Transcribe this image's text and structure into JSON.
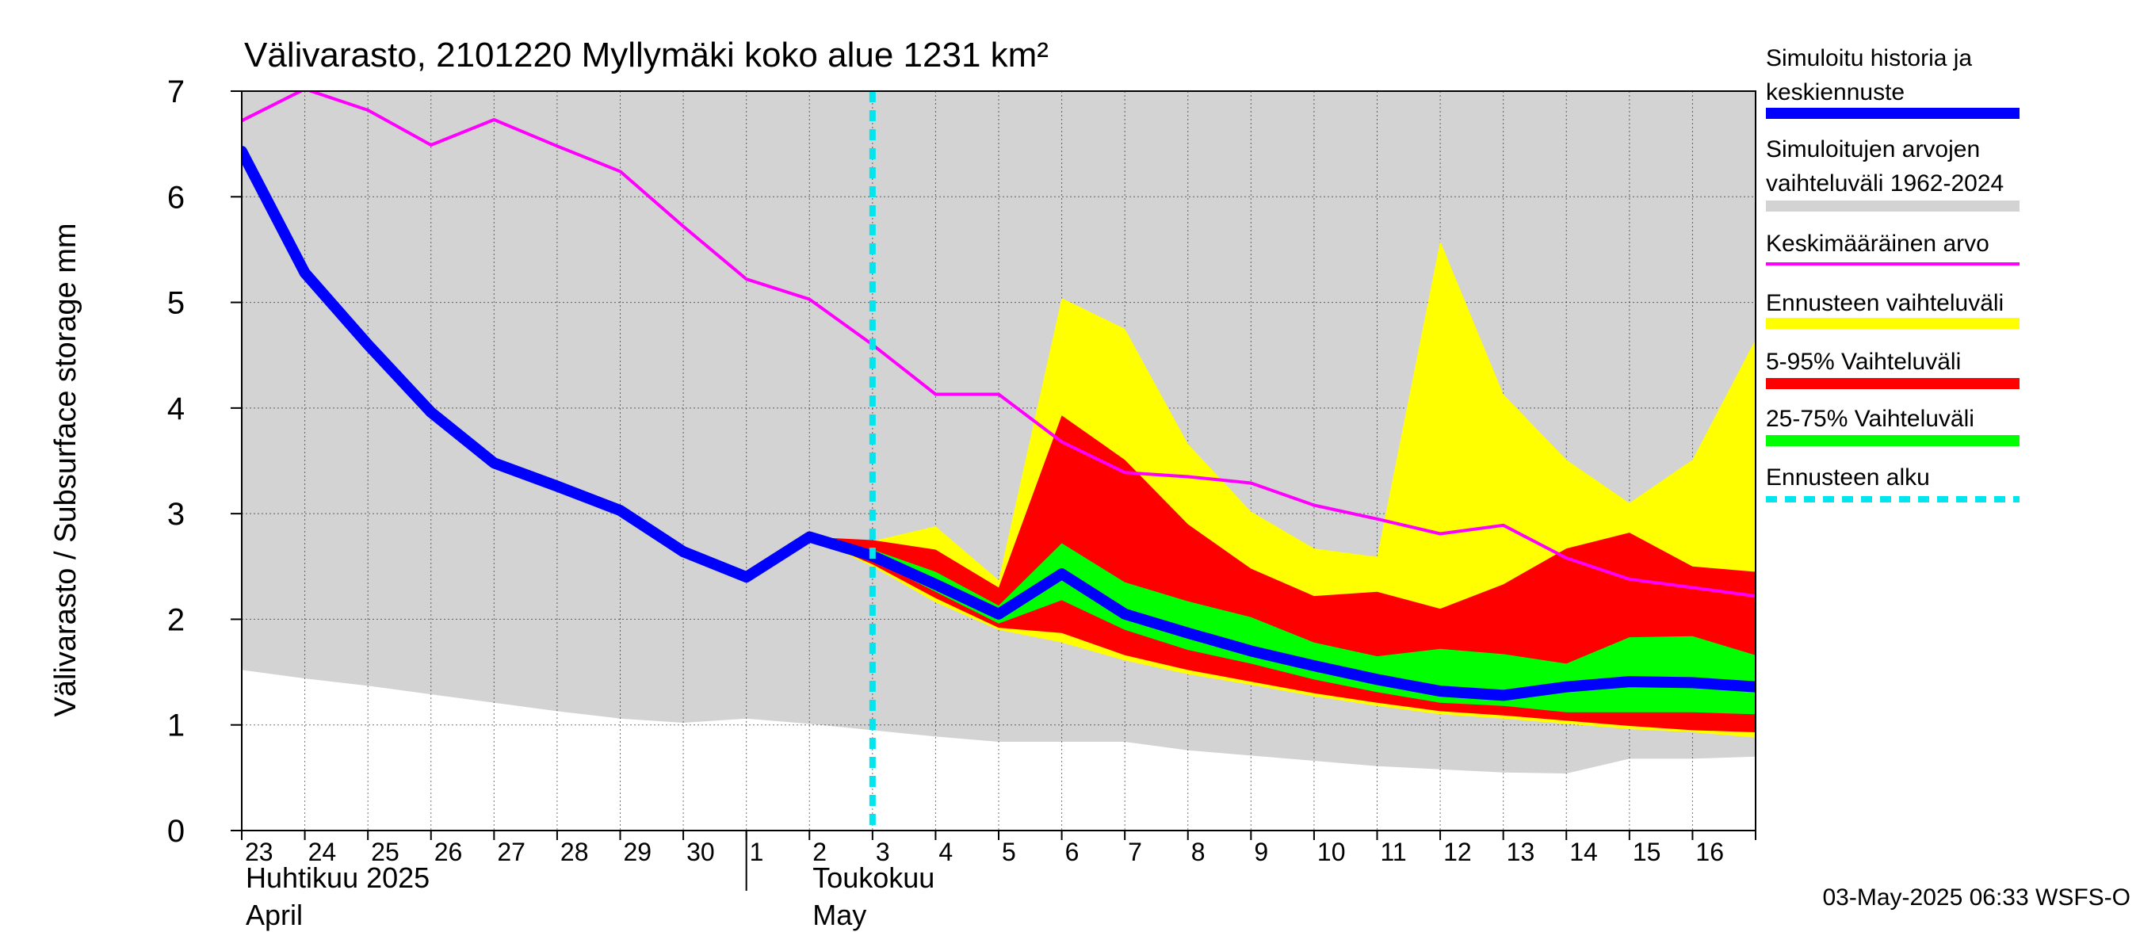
{
  "chart_data": {
    "type": "area",
    "title": "Välivarasto, 2101220 Myllymäki koko alue 1231 km²",
    "ylabel": "Välivarasto / Subsurface storage  mm",
    "ylim": [
      0,
      7
    ],
    "yticks": [
      "0",
      "1",
      "2",
      "3",
      "4",
      "5",
      "6",
      "7"
    ],
    "x_days": [
      "23",
      "24",
      "25",
      "26",
      "27",
      "28",
      "29",
      "30",
      "1",
      "2",
      "3",
      "4",
      "5",
      "6",
      "7",
      "8",
      "9",
      "10",
      "11",
      "12",
      "13",
      "14",
      "15",
      "16"
    ],
    "x_range_days": [
      0,
      24
    ],
    "months": [
      {
        "fi": "Huhtikuu  2025",
        "en": "April"
      },
      {
        "fi": "Toukokuu",
        "en": "May"
      }
    ],
    "forecast_start_day": 10,
    "history_range": {
      "x": [
        0,
        1,
        2,
        3,
        4,
        5,
        6,
        7,
        8,
        9,
        10,
        11,
        12,
        13,
        14,
        15,
        16,
        17,
        18,
        19,
        20,
        21,
        22,
        23,
        24
      ],
      "lower": [
        1.52,
        1.44,
        1.37,
        1.29,
        1.21,
        1.13,
        1.06,
        1.02,
        1.06,
        1.01,
        0.95,
        0.89,
        0.84,
        0.84,
        0.84,
        0.76,
        0.71,
        0.66,
        0.61,
        0.58,
        0.55,
        0.54,
        0.68,
        0.68,
        0.7
      ],
      "upper": [
        7,
        7,
        7,
        7,
        7,
        7,
        7,
        7,
        7,
        7,
        7,
        7,
        7,
        7,
        7,
        7,
        7,
        7,
        7,
        7,
        7,
        7,
        7,
        7,
        7
      ]
    },
    "series": [
      {
        "name": "Keskimääräinen arvo",
        "x": [
          0,
          1,
          2,
          3,
          4,
          5,
          6,
          7,
          8,
          9,
          10,
          11,
          12,
          13,
          14,
          15,
          16,
          17,
          18,
          19,
          20,
          21,
          22,
          23,
          24
        ],
        "values": [
          6.72,
          7.02,
          6.82,
          6.49,
          6.73,
          6.48,
          6.24,
          5.72,
          5.22,
          5.03,
          4.6,
          4.13,
          4.13,
          3.68,
          3.39,
          3.35,
          3.29,
          3.08,
          2.95,
          2.81,
          2.89,
          2.58,
          2.38,
          2.3,
          2.22
        ]
      },
      {
        "name": "Simuloitu historia ja keskiennuste",
        "x": [
          0,
          1,
          2,
          3,
          4,
          5,
          6,
          7,
          8,
          9,
          10,
          11,
          12,
          13,
          14,
          15,
          16,
          17,
          18,
          19,
          20,
          21,
          22,
          23,
          24
        ],
        "values": [
          6.43,
          5.28,
          4.6,
          3.96,
          3.48,
          3.26,
          3.03,
          2.64,
          2.4,
          2.78,
          2.6,
          2.33,
          2.05,
          2.43,
          2.05,
          1.87,
          1.7,
          1.56,
          1.43,
          1.32,
          1.28,
          1.36,
          1.41,
          1.4,
          1.36
        ]
      }
    ],
    "forecast_bands": {
      "x": [
        9,
        10,
        11,
        12,
        13,
        14,
        15,
        16,
        17,
        18,
        19,
        20,
        21,
        22,
        23,
        24
      ],
      "forecast_range": {
        "lower": [
          2.78,
          2.5,
          2.16,
          1.9,
          1.78,
          1.61,
          1.48,
          1.38,
          1.27,
          1.18,
          1.1,
          1.06,
          1.01,
          0.96,
          0.93,
          0.88
        ],
        "upper": [
          2.78,
          2.74,
          2.88,
          2.37,
          5.04,
          4.75,
          3.66,
          3.02,
          2.67,
          2.59,
          5.58,
          4.13,
          3.51,
          3.1,
          3.51,
          4.65
        ]
      },
      "p5_95": {
        "lower": [
          2.78,
          2.52,
          2.2,
          1.92,
          1.87,
          1.66,
          1.52,
          1.41,
          1.3,
          1.21,
          1.13,
          1.09,
          1.04,
          0.99,
          0.95,
          0.93
        ],
        "upper": [
          2.78,
          2.75,
          2.66,
          2.3,
          3.93,
          3.51,
          2.9,
          2.48,
          2.22,
          2.26,
          2.1,
          2.33,
          2.67,
          2.82,
          2.5,
          2.45
        ]
      },
      "p25_75": {
        "lower": [
          2.78,
          2.56,
          2.26,
          1.96,
          2.18,
          1.9,
          1.71,
          1.58,
          1.43,
          1.31,
          1.21,
          1.18,
          1.12,
          1.12,
          1.12,
          1.1
        ],
        "upper": [
          2.78,
          2.66,
          2.45,
          2.13,
          2.72,
          2.35,
          2.17,
          2.02,
          1.78,
          1.65,
          1.72,
          1.67,
          1.58,
          1.83,
          1.84,
          1.66
        ]
      }
    },
    "legend": [
      {
        "label": "Simuloitu historia ja keskiennuste",
        "color": "#0000ff",
        "style": "thick"
      },
      {
        "label": "Simuloitujen arvojen vaihteluväli 1962-2024",
        "color": "#d3d3d3",
        "style": "thick"
      },
      {
        "label": "Keskimääräinen arvo",
        "color": "#ff00ff",
        "style": "thin"
      },
      {
        "label": "Ennusteen vaihteluväli",
        "color": "#ffff00",
        "style": "thick"
      },
      {
        "label": "5-95% Vaihteluväli",
        "color": "#ff0000",
        "style": "thick"
      },
      {
        "label": "25-75% Vaihteluväli",
        "color": "#00ff00",
        "style": "thick"
      },
      {
        "label": "Ennusteen alku",
        "color": "#00e5ee",
        "style": "dashed"
      }
    ],
    "legend_position": "right",
    "grid": true
  },
  "footer": "03-May-2025 06:33 WSFS-O",
  "colors": {
    "history_range": "#d3d3d3",
    "forecast_range": "#ffff00",
    "p5_95": "#ff0000",
    "p25_75": "#00ff00",
    "mean_line": "#0000ff",
    "average_line": "#ff00ff",
    "forecast_start": "#00e5ee"
  }
}
